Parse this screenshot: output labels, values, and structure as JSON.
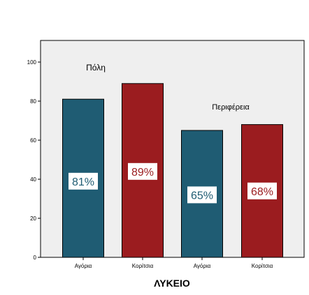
{
  "chart_data": {
    "type": "bar",
    "xlabel": "ΛΥΚΕΙΟ",
    "ylabel": "",
    "ylim": [
      0,
      110
    ],
    "yticks": [
      0,
      20,
      40,
      60,
      80,
      100
    ],
    "grid": false,
    "categories": [
      "Αγόρια",
      "Κορίτσια",
      "Αγόρια",
      "Κορίτσια"
    ],
    "groups": [
      "Πόλη",
      "Περιφέρεια"
    ],
    "values": [
      81,
      89,
      65,
      68
    ],
    "value_labels": [
      "81%",
      "89%",
      "65%",
      "68%"
    ],
    "label_positions": [
      39,
      44,
      32,
      34
    ],
    "bar_colors": [
      "#1f5c73",
      "#9b1c1f",
      "#1f5c73",
      "#9b1c1f"
    ],
    "plot_background": "#efefef"
  }
}
